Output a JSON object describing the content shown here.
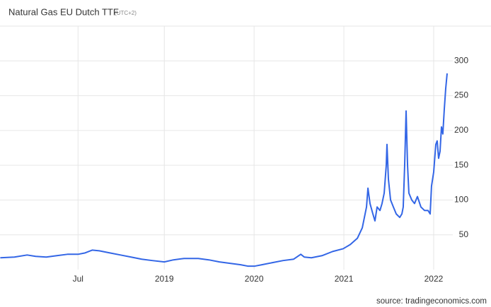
{
  "chart_data": {
    "type": "line",
    "title": "Natural Gas EU Dutch TTF",
    "subtitle": "(UTC+2)",
    "source": "source: tradingeconomics.com",
    "color": "#3366e6",
    "x": [
      2017.173,
      2017.331,
      2017.472,
      2017.567,
      2017.685,
      2017.803,
      2017.921,
      2018.039,
      2018.118,
      2018.197,
      2018.276,
      2018.394,
      2018.512,
      2018.63,
      2018.748,
      2018.866,
      2019.0,
      2019.102,
      2019.22,
      2019.378,
      2019.496,
      2019.614,
      2019.732,
      2019.85,
      2019.929,
      2020.008,
      2020.087,
      2020.205,
      2020.323,
      2020.441,
      2020.52,
      2020.559,
      2020.638,
      2020.756,
      2020.874,
      2020.992,
      2021.071,
      2021.15,
      2021.205,
      2021.252,
      2021.268,
      2021.291,
      2021.323,
      2021.346,
      2021.37,
      2021.402,
      2021.425,
      2021.449,
      2021.472,
      2021.48,
      2021.496,
      2021.52,
      2021.551,
      2021.583,
      2021.622,
      2021.646,
      2021.661,
      2021.677,
      2021.693,
      2021.709,
      2021.724,
      2021.756,
      2021.787,
      2021.819,
      2021.858,
      2021.898,
      2021.937,
      2021.961,
      2021.976,
      2022.0,
      2022.024,
      2022.039,
      2022.055,
      2022.071,
      2022.087,
      2022.102,
      2022.118,
      2022.134,
      2022.15
    ],
    "values": [
      17,
      18,
      21,
      19,
      18,
      20,
      22,
      22,
      24,
      28,
      27,
      24,
      21,
      18,
      15,
      13,
      11,
      14,
      16,
      16,
      14,
      11,
      9,
      7,
      5,
      5,
      7,
      10,
      13,
      15,
      22,
      18,
      17,
      20,
      26,
      30,
      36,
      45,
      60,
      90,
      117,
      95,
      80,
      70,
      90,
      85,
      95,
      110,
      150,
      180,
      130,
      100,
      90,
      80,
      75,
      80,
      90,
      150,
      228,
      150,
      110,
      100,
      95,
      105,
      90,
      85,
      85,
      80,
      120,
      140,
      180,
      185,
      160,
      170,
      205,
      195,
      230,
      260,
      282
    ],
    "xlim": [
      2017.17,
      2022.15
    ],
    "xticks": [
      {
        "value": 2018.039,
        "label": "Jul"
      },
      2019,
      2020,
      2021,
      2022
    ],
    "ylim": [
      0,
      350
    ],
    "yticks": [
      50,
      100,
      150,
      200,
      250,
      300
    ],
    "grid": true
  }
}
